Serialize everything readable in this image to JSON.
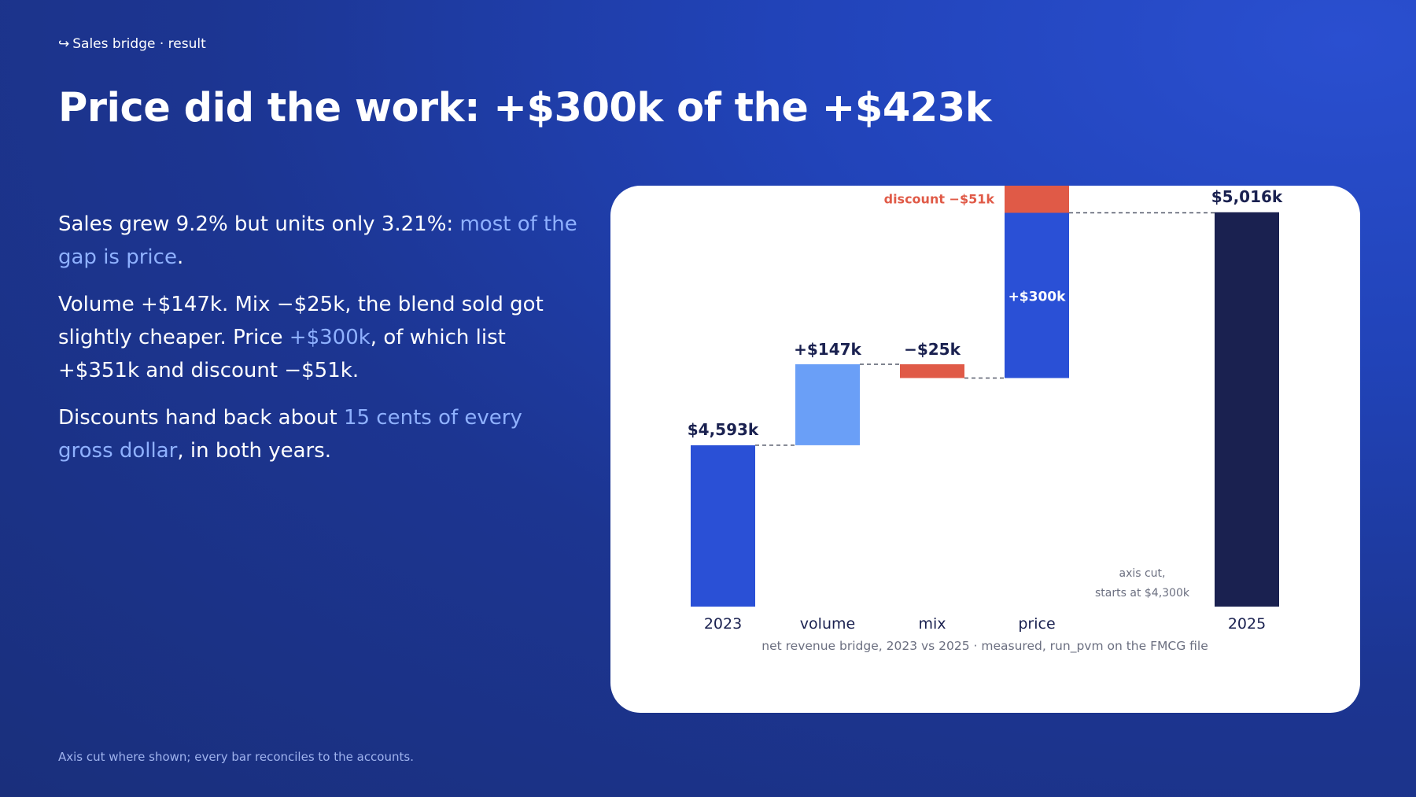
{
  "header": {
    "kicker": "Sales bridge · result",
    "kicker_icon": "return-arrow-icon",
    "title": "Price did the work: +$300k of the +$423k"
  },
  "body": {
    "p1": {
      "text": "Sales grew 9.2% but units only 3.21%: ",
      "highlight": "most of the gap is price",
      "tail": "."
    },
    "p2": {
      "text": "Volume +$147k. Mix −$25k, the blend sold got slightly cheaper. Price ",
      "highlight": "+$300k",
      "tail": ", of which list +$351k and discount −$51k."
    },
    "p3": {
      "text": "Discounts hand back about ",
      "highlight": "15 cents of every gross dollar",
      "tail": ", in both years."
    }
  },
  "footer": "Axis cut where shown; every bar reconciles to the accounts.",
  "colors": {
    "total": "#2a50d6",
    "volume": "#6a9ff7",
    "negative": "#e05a47",
    "final": "#1a2150"
  },
  "chart_data": {
    "type": "waterfall",
    "units": "$k",
    "axis_min": 4300,
    "categories": [
      "2023",
      "volume",
      "mix",
      "price",
      "2025"
    ],
    "steps": [
      {
        "category": "2023",
        "kind": "total",
        "value": 4593,
        "label": "$4,593k"
      },
      {
        "category": "volume",
        "kind": "delta",
        "value": 147,
        "label": "+$147k"
      },
      {
        "category": "mix",
        "kind": "delta",
        "value": -25,
        "label": "−$25k"
      },
      {
        "category": "price",
        "kind": "delta",
        "value": 300,
        "inner_label": "+$300k",
        "components": [
          {
            "name": "list",
            "value": 351,
            "label": "list +$351k"
          },
          {
            "name": "discount",
            "value": -51,
            "label": "discount −$51k"
          }
        ]
      },
      {
        "category": "2025",
        "kind": "total",
        "value": 5016,
        "label": "$5,016k"
      }
    ],
    "annotation": {
      "line1": "axis cut,",
      "line2": "starts at $4,300k"
    },
    "caption": "net revenue bridge, 2023 vs 2025 · measured, run_pvm on the FMCG file"
  }
}
